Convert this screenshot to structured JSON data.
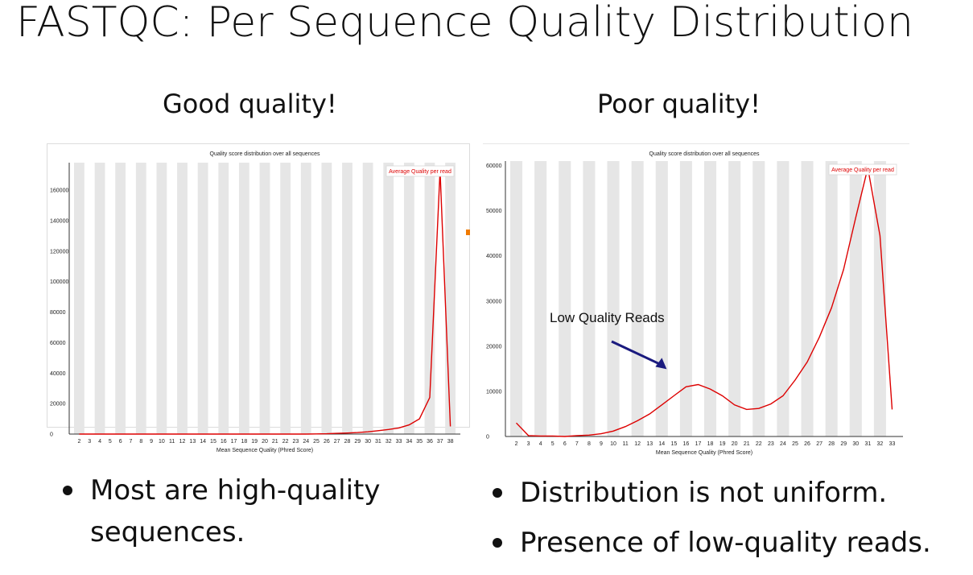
{
  "slide": {
    "title": "FASTQC: Per Sequence Quality Distribution",
    "left_heading": "Good quality!",
    "right_heading": "Poor quality!",
    "left_bullets": [
      "Most are high-quality sequences."
    ],
    "right_bullets": [
      "Distribution is not uniform.",
      "Presence of low-quality reads."
    ]
  },
  "chart_data": [
    {
      "type": "line",
      "title": "Quality score distribution over all sequences",
      "xlabel": "Mean Sequence Quality (Phred Score)",
      "ylabel": "",
      "legend": "Average Quality per read",
      "legend_position": "top-right",
      "line_color": "#dd0000",
      "band_color": "#e6e6e6",
      "ylim": [
        0,
        178000
      ],
      "yticks": [
        0,
        20000,
        40000,
        60000,
        80000,
        100000,
        120000,
        140000,
        160000
      ],
      "x": [
        2,
        3,
        4,
        5,
        6,
        7,
        8,
        9,
        10,
        11,
        12,
        13,
        14,
        15,
        16,
        17,
        18,
        19,
        20,
        21,
        22,
        23,
        24,
        25,
        26,
        27,
        28,
        29,
        30,
        31,
        32,
        33,
        34,
        35,
        36,
        37,
        38
      ],
      "series": [
        {
          "name": "Average Quality per read",
          "values": [
            0,
            0,
            0,
            0,
            0,
            0,
            0,
            0,
            0,
            0,
            0,
            0,
            0,
            0,
            0,
            0,
            0,
            0,
            0,
            0,
            0,
            0,
            0,
            100,
            200,
            500,
            700,
            1000,
            1500,
            2200,
            3000,
            4000,
            6000,
            10000,
            24000,
            173000,
            5000
          ]
        }
      ]
    },
    {
      "type": "line",
      "title": "Quality score distribution over all sequences",
      "xlabel": "Mean Sequence Quality (Phred Score)",
      "ylabel": "",
      "legend": "Average Quality per read",
      "legend_position": "top-right",
      "line_color": "#dd0000",
      "band_color": "#e6e6e6",
      "ylim": [
        0,
        61000
      ],
      "yticks": [
        0,
        10000,
        20000,
        30000,
        40000,
        50000,
        60000
      ],
      "x": [
        2,
        3,
        4,
        5,
        6,
        7,
        8,
        9,
        10,
        11,
        12,
        13,
        14,
        15,
        16,
        17,
        18,
        19,
        20,
        21,
        22,
        23,
        24,
        25,
        26,
        27,
        28,
        29,
        30,
        31,
        32,
        33
      ],
      "series": [
        {
          "name": "Average Quality per read",
          "values": [
            3000,
            200,
            100,
            100,
            0,
            200,
            300,
            600,
            1200,
            2200,
            3500,
            5000,
            7000,
            9000,
            11000,
            11500,
            10500,
            9000,
            7000,
            6000,
            6200,
            7200,
            9000,
            12500,
            16500,
            22000,
            28500,
            37000,
            48500,
            59500,
            44500,
            6000
          ]
        }
      ],
      "annotation": {
        "text": "Low Quality Reads",
        "arrow_color": "#1a1a7e",
        "points_to_x": 16
      }
    }
  ]
}
